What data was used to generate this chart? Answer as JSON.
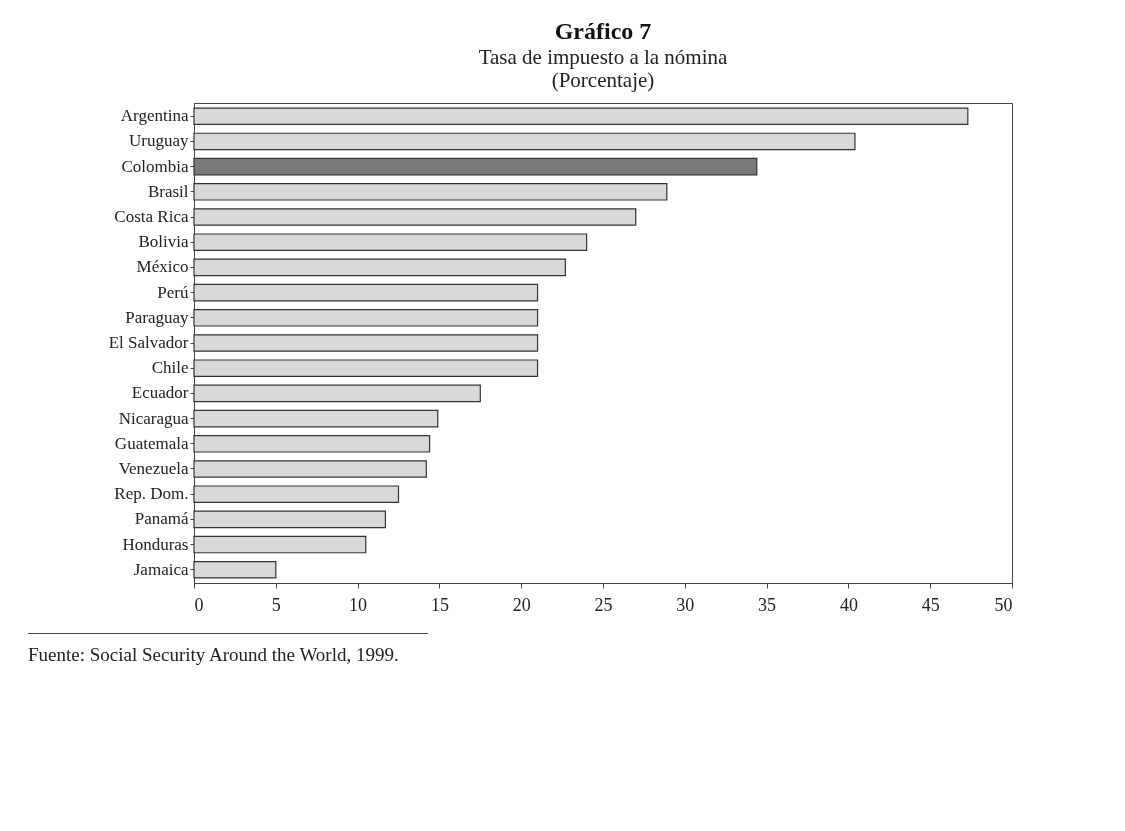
{
  "chart_data": {
    "type": "bar",
    "orientation": "horizontal",
    "title": "Gráfico 7",
    "subtitle": "Tasa de impuesto a la nómina\n(Porcentaje)",
    "categories": [
      "Argentina",
      "Uruguay",
      "Colombia",
      "Brasil",
      "Costa Rica",
      "Bolivia",
      "México",
      "Perú",
      "Paraguay",
      "El Salvador",
      "Chile",
      "Ecuador",
      "Nicaragua",
      "Guatemala",
      "Venezuela",
      "Rep. Dom.",
      "Panamá",
      "Honduras",
      "Jamaica"
    ],
    "values": [
      47.3,
      40.4,
      34.4,
      28.9,
      27.0,
      24.0,
      22.7,
      21.0,
      21.0,
      21.0,
      21.0,
      17.5,
      14.9,
      14.4,
      14.2,
      12.5,
      11.7,
      10.5,
      5.0
    ],
    "colors": [
      "#d9d9d9",
      "#d9d9d9",
      "#7a7a7a",
      "#d9d9d9",
      "#d9d9d9",
      "#d9d9d9",
      "#d9d9d9",
      "#d9d9d9",
      "#d9d9d9",
      "#d9d9d9",
      "#d9d9d9",
      "#d9d9d9",
      "#d9d9d9",
      "#d9d9d9",
      "#d9d9d9",
      "#d9d9d9",
      "#d9d9d9",
      "#d9d9d9",
      "#d9d9d9"
    ],
    "xlim": [
      0,
      50
    ],
    "xticks": [
      0,
      5,
      10,
      15,
      20,
      25,
      30,
      35,
      40,
      45,
      50
    ],
    "grid": false,
    "annotations": [
      "Fuente: Social Security Around the World, 1999."
    ]
  }
}
